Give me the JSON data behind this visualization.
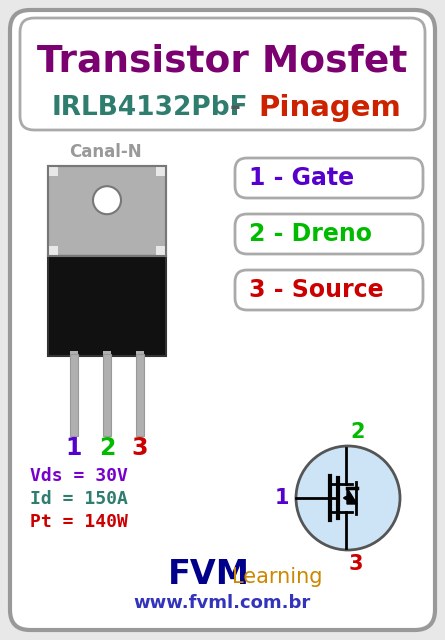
{
  "bg_color": "#e8e8e8",
  "border_color": "#999999",
  "title1": "Transistor Mosfet",
  "title1_color": "#7b0070",
  "title2_part1": "IRLB4132PbF",
  "title2_part1_color": "#2e7d6e",
  "title2_part2": " - Pinagem",
  "title2_part2_color_dash": "#444444",
  "title2_part2_color": "#cc2200",
  "canal_n_text": "Canal-N",
  "canal_n_color": "#999999",
  "pin_labels": [
    "1 - Gate",
    "2 - Dreno",
    "3 - Source"
  ],
  "pin_colors": [
    "#5500cc",
    "#00bb00",
    "#cc0000"
  ],
  "pin_numbers_colors": [
    "#5500cc",
    "#00bb00",
    "#cc0000"
  ],
  "pin_numbers": [
    "1",
    "2",
    "3"
  ],
  "spec_lines": [
    "Vds = 30V",
    "Id = 150A",
    "Pt = 140W"
  ],
  "spec_colors": [
    "#7700cc",
    "#2e7d6e",
    "#cc0000"
  ],
  "fvm_color": "#00008b",
  "learning_color": "#cc8800",
  "website_color": "#3333bb",
  "mosfet_circle_color": "#cce4f5",
  "mosfet_circle_edge": "#555555",
  "metal_tab_color": "#b0b0b0",
  "metal_tab_edge": "#777777",
  "black_body_color": "#111111",
  "leg_color": "#b0b0b0"
}
